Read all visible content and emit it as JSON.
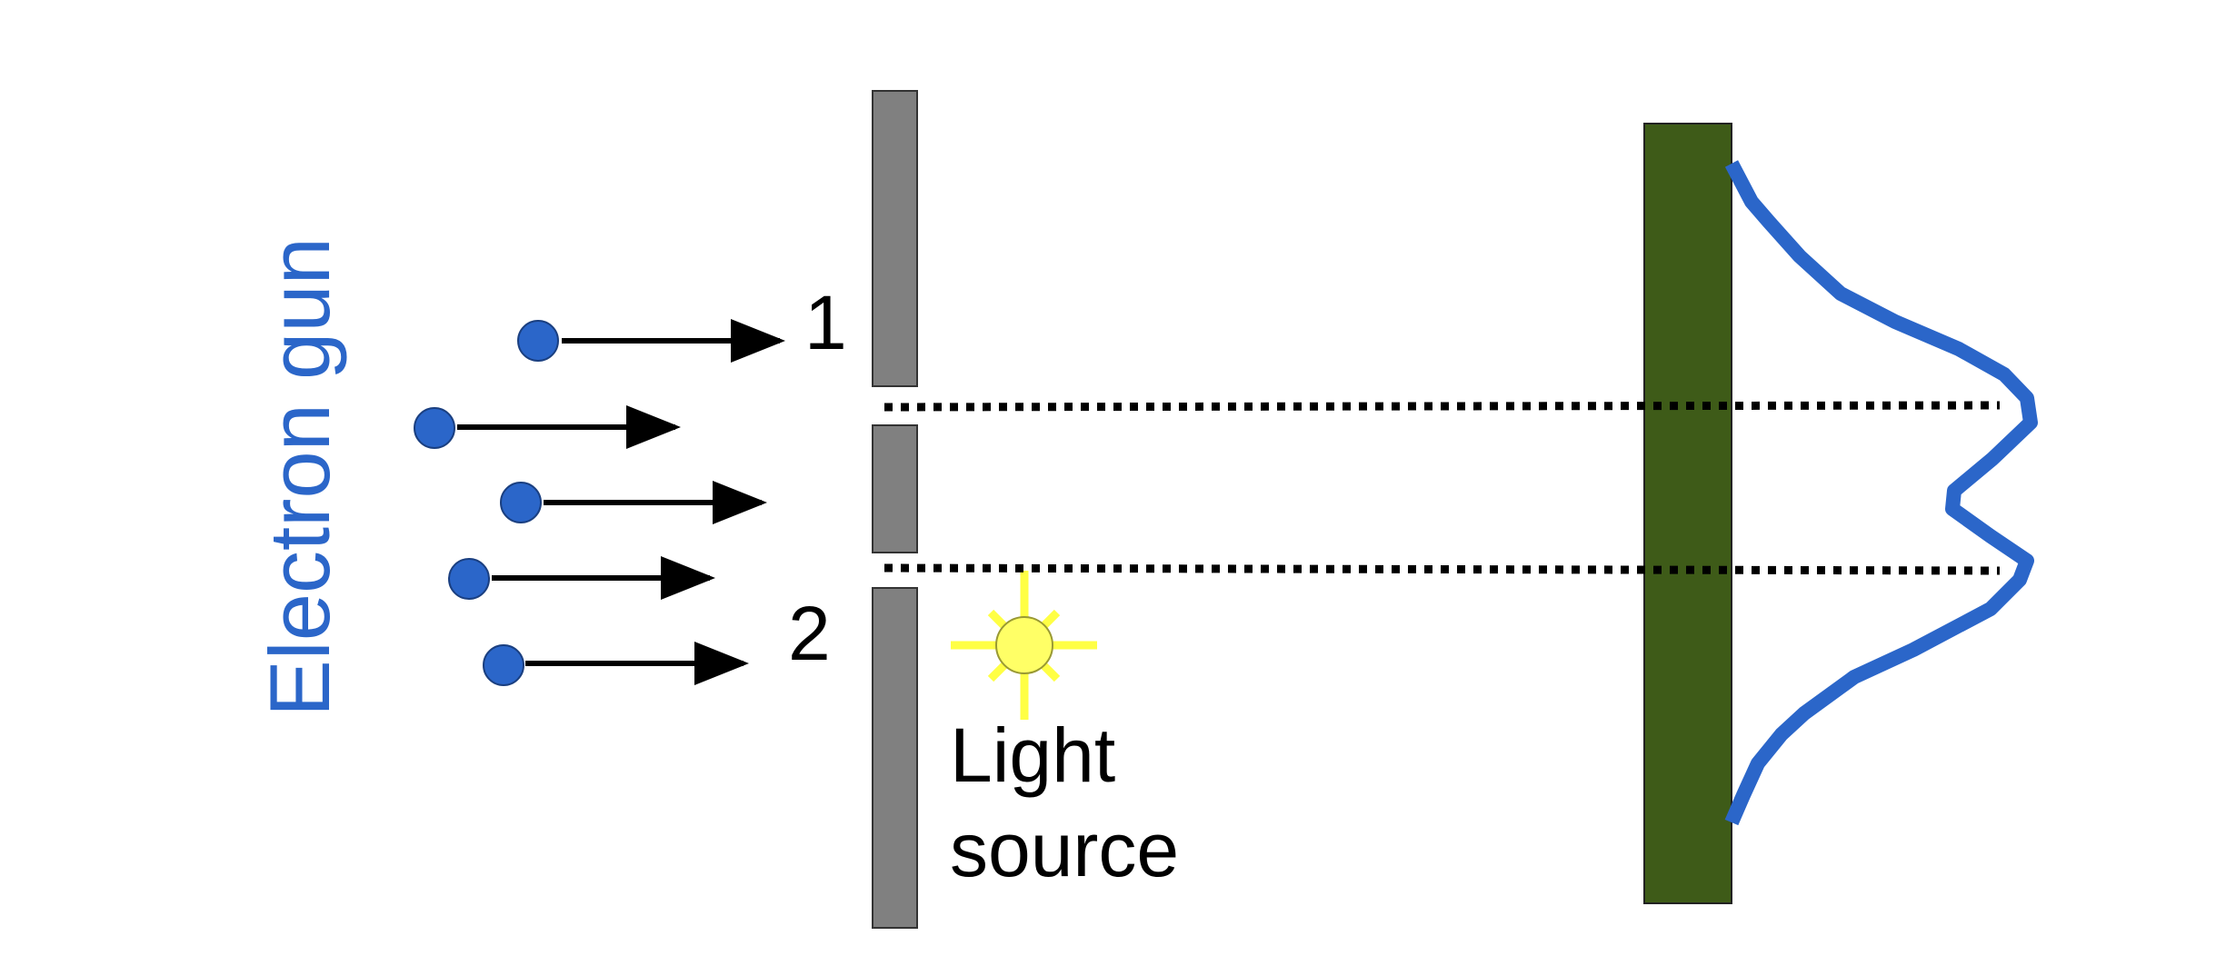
{
  "labels": {
    "electron_gun": "Electron gun",
    "slit_1": "1",
    "slit_2": "2",
    "light_source_line1": "Light",
    "light_source_line2": "source"
  },
  "colors": {
    "electron": "#2b66c9",
    "electron_gun_text": "#2b66c9",
    "arrow": "#000000",
    "barrier": "#808080",
    "screen": "#3e5b18",
    "pattern_curve": "#2b66c9",
    "light_source": "#ffff66",
    "light_rays": "#ffff44",
    "dotted_line": "#000000",
    "text": "#000000"
  },
  "electrons": {
    "count": 5,
    "direction": "right"
  },
  "barrier": {
    "slits": [
      "1",
      "2"
    ]
  },
  "pattern": {
    "type": "two-peak intensity curve"
  }
}
